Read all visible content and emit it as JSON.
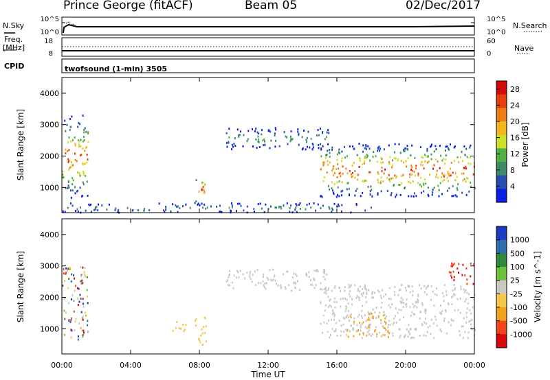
{
  "header": {
    "station": "Prince George (fitACF)",
    "beam": "Beam 05",
    "date": "02/Dec/2017"
  },
  "strip_labels": {
    "nsky": "N.Sky",
    "nsearch": "N.Search",
    "freq_line1": "Freq.",
    "freq_line2": "[MHz]",
    "cpid": "CPID",
    "nave": "Nave",
    "program": "twofsound (1-min) 3505",
    "nsky_ticks": [
      "10^5",
      "10^0"
    ],
    "nsearch_ticks": [
      "10^5",
      "10^0"
    ],
    "freq_ticks": [
      "18",
      "8"
    ],
    "nave_ticks": [
      "60",
      "0"
    ]
  },
  "colors": {
    "power_scale": [
      "#0b1ee6",
      "#234fb0",
      "#3c8a6a",
      "#52b040",
      "#cce028",
      "#f3b51c",
      "#f07d12",
      "#e83d0c",
      "#d70a0a"
    ],
    "velocity_scale": [
      "#d70a0a",
      "#f2431b",
      "#f3a21c",
      "#f5c84a",
      "#c9c9c1",
      "#6cc33c",
      "#2e8a3c",
      "#2e6cae",
      "#1a3cc8"
    ]
  },
  "chart_data": [
    {
      "type": "heatmap",
      "panel": "power",
      "title": "",
      "xlabel": "",
      "ylabel": "Slant Range [km]",
      "x_ticks": [
        "00:00",
        "04:00",
        "08:00",
        "12:00",
        "16:00",
        "20:00",
        "00:00"
      ],
      "xlim_hours": [
        0,
        24
      ],
      "ylim": [
        200,
        4500
      ],
      "y_ticks": [
        1000,
        2000,
        3000,
        4000
      ],
      "colorbar": {
        "label": "Power [dB]",
        "ticks": [
          4,
          8,
          12,
          16,
          20,
          24,
          28
        ],
        "range": [
          0,
          30
        ]
      },
      "echo_regions": [
        {
          "t0": 0.0,
          "t1": 1.5,
          "r0": 650,
          "r1": 3300,
          "peak_db": 26,
          "desc": "early echoes"
        },
        {
          "t0": 7.7,
          "t1": 8.3,
          "r0": 400,
          "r1": 1450,
          "peak_db": 26,
          "desc": "near-range burst"
        },
        {
          "t0": 9.5,
          "t1": 15.5,
          "r0": 2200,
          "r1": 2900,
          "peak_db": 12,
          "desc": "far-range band"
        },
        {
          "t0": 15.0,
          "t1": 24.0,
          "r0": 700,
          "r1": 2400,
          "peak_db": 28,
          "desc": "main descending band"
        },
        {
          "t0": 0.0,
          "t1": 18.0,
          "r0": 200,
          "r1": 500,
          "peak_db": 10,
          "desc": "ground scatter floor"
        }
      ]
    },
    {
      "type": "heatmap",
      "panel": "velocity",
      "title": "",
      "xlabel": "Time UT",
      "ylabel": "Slant Range [km]",
      "x_ticks": [
        "00:00",
        "04:00",
        "08:00",
        "12:00",
        "16:00",
        "20:00",
        "00:00"
      ],
      "xlim_hours": [
        0,
        24
      ],
      "ylim": [
        200,
        4500
      ],
      "y_ticks": [
        1000,
        2000,
        3000,
        4000
      ],
      "colorbar": {
        "label": "Velocity [m s^-1]",
        "ticks": [
          1000,
          500,
          100,
          25,
          -25,
          -100,
          -500,
          -1000
        ]
      },
      "echo_regions": [
        {
          "t0": 0.0,
          "t1": 1.5,
          "r0": 650,
          "r1": 3000,
          "vel": "mixed",
          "desc": "early echoes"
        },
        {
          "t0": 6.3,
          "t1": 7.2,
          "r0": 900,
          "r1": 1300,
          "vel": -300,
          "desc": "small patch"
        },
        {
          "t0": 7.7,
          "t1": 8.4,
          "r0": 400,
          "r1": 1450,
          "vel": -200,
          "desc": "near-range burst"
        },
        {
          "t0": 9.5,
          "t1": 15.5,
          "r0": 2200,
          "r1": 2900,
          "vel": 0,
          "desc": "ground scatter band"
        },
        {
          "t0": 15.0,
          "t1": 24.0,
          "r0": 700,
          "r1": 2400,
          "vel": 0,
          "desc": "main band"
        },
        {
          "t0": 16.5,
          "t1": 19.0,
          "r0": 700,
          "r1": 1500,
          "vel": -120,
          "desc": "orange patch"
        },
        {
          "t0": 22.5,
          "t1": 24.0,
          "r0": 2400,
          "r1": 3100,
          "vel": -400,
          "desc": "late far echoes"
        }
      ]
    }
  ]
}
